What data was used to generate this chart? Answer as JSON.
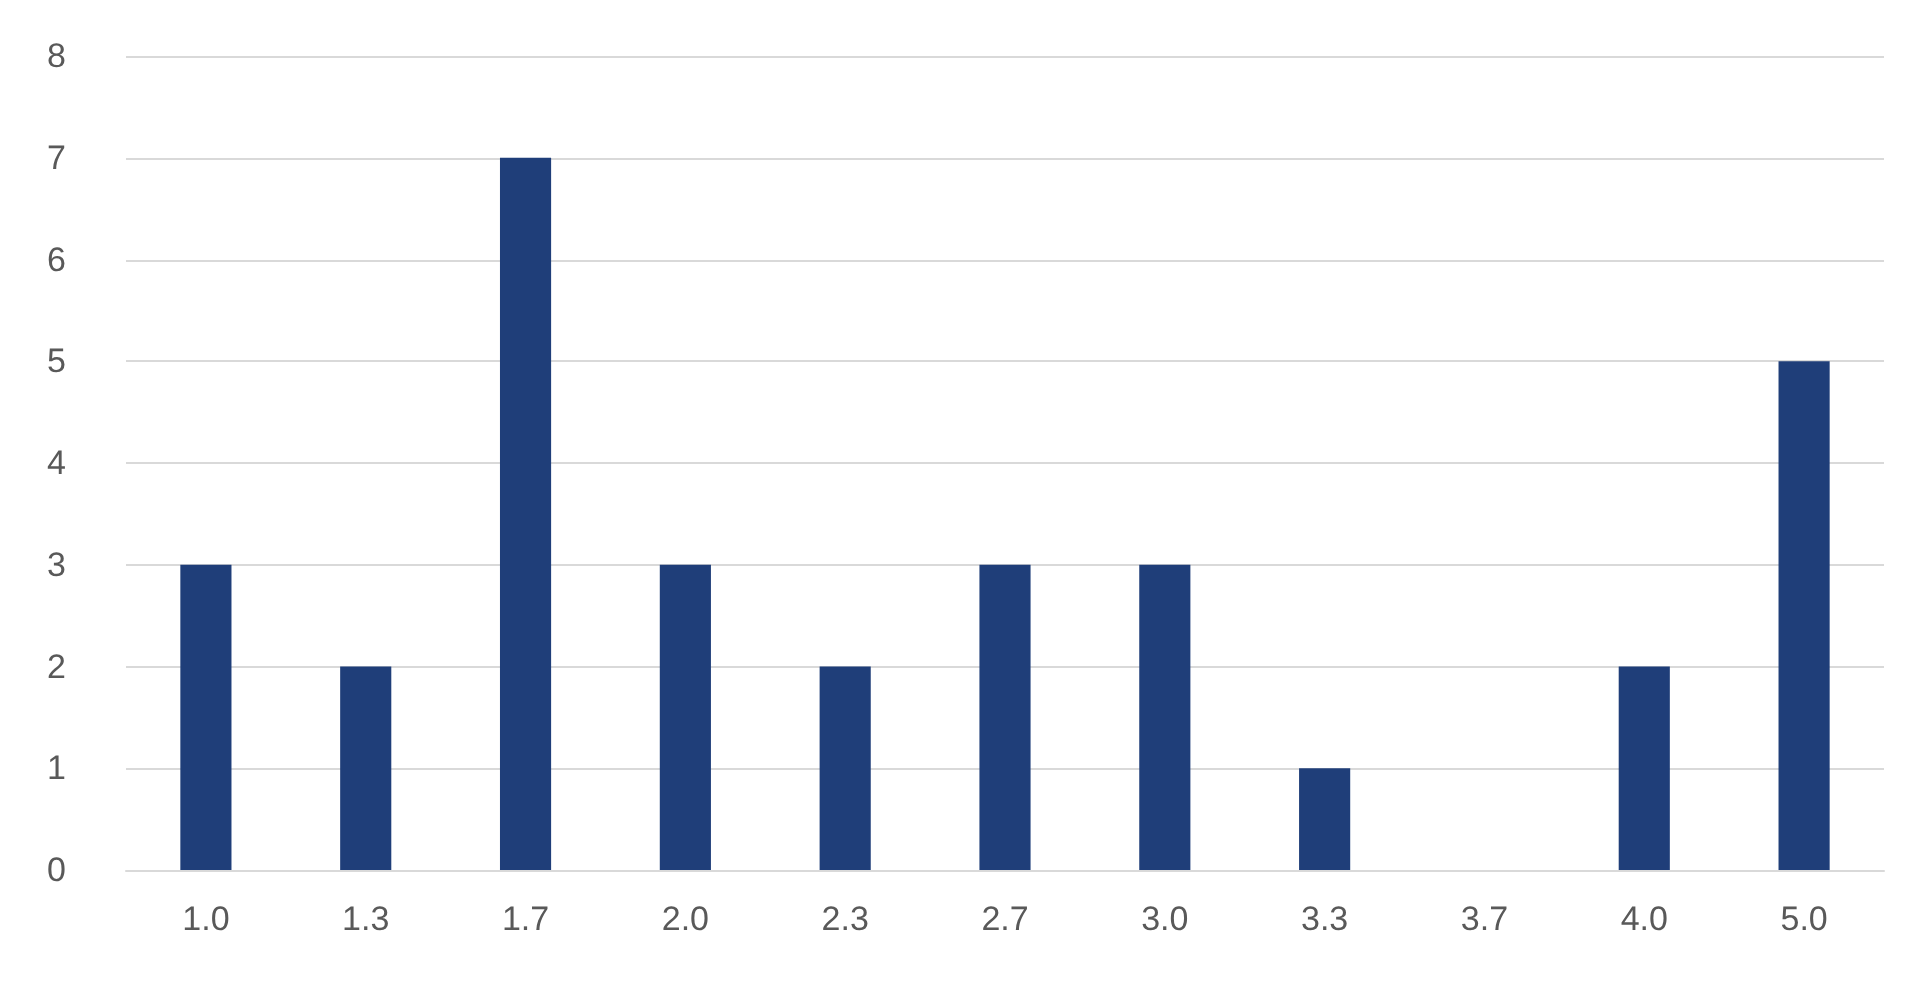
{
  "chart_data": {
    "type": "bar",
    "categories": [
      "1.0",
      "1.3",
      "1.7",
      "2.0",
      "2.3",
      "2.7",
      "3.0",
      "3.3",
      "3.7",
      "4.0",
      "5.0"
    ],
    "values": [
      3,
      2,
      7,
      3,
      2,
      3,
      3,
      1,
      0,
      2,
      5
    ],
    "color": "#1f3e79",
    "ylim": [
      0,
      8
    ],
    "yticks": [
      0,
      1,
      2,
      3,
      4,
      5,
      6,
      7,
      8
    ],
    "grid": "y"
  }
}
